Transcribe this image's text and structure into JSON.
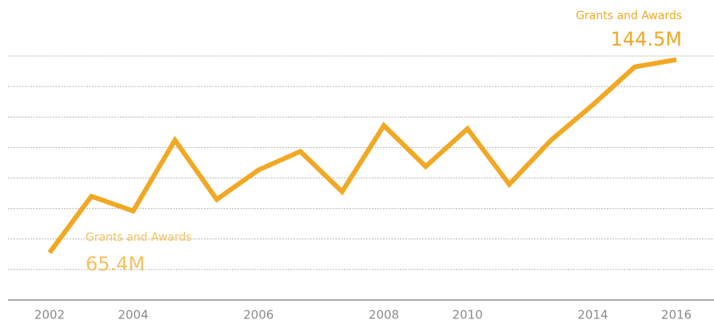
{
  "chart_data": {
    "type": "line",
    "categories": [
      "2002",
      null,
      "2004",
      null,
      null,
      "2006",
      null,
      null,
      "2008",
      null,
      "2010",
      null,
      null,
      "2014",
      null,
      "2016"
    ],
    "series": [
      {
        "name": "Grants and Awards",
        "color": "#f1a824",
        "values": [
          65.4,
          88.5,
          82.5,
          111.5,
          87.2,
          99.3,
          106.9,
          90.4,
          117.5,
          100.7,
          116.2,
          93.4,
          111.5,
          126.0,
          141.5,
          144.5
        ],
        "value_labels": [
          "65.4M",
          null,
          null,
          null,
          null,
          null,
          null,
          null,
          null,
          null,
          null,
          null,
          null,
          null,
          null,
          "144.5M"
        ]
      }
    ],
    "ylim": [
      46,
      146
    ],
    "yticks": [
      58.5,
      71,
      83.5,
      96,
      108.5,
      121,
      133.5,
      146
    ],
    "grid": true
  }
}
